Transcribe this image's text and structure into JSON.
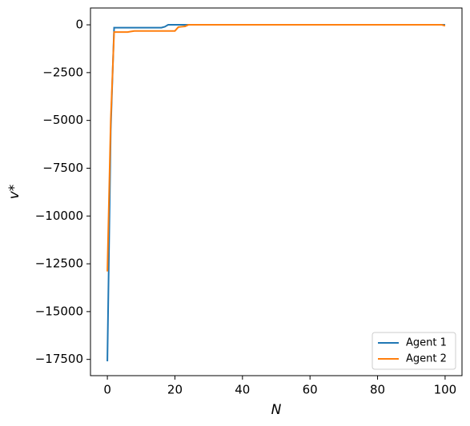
{
  "chart_data": {
    "type": "line",
    "xlabel": "N",
    "ylabel": "v*",
    "xlim": [
      -5,
      105
    ],
    "ylim": [
      -18350,
      880
    ],
    "xticks": [
      0,
      20,
      40,
      60,
      80,
      100
    ],
    "yticks": [
      0,
      {
        "value": -2500,
        "label": "−2500"
      },
      {
        "value": -5000,
        "label": "−5000"
      },
      {
        "value": -7500,
        "label": "−7500"
      },
      {
        "value": -10000,
        "label": "−10000"
      },
      {
        "value": -12500,
        "label": "−12500"
      },
      {
        "value": -15000,
        "label": "−15000"
      },
      {
        "value": -17500,
        "label": "−17500"
      }
    ],
    "legend": "lower right",
    "series": [
      {
        "name": "Agent 1",
        "color": "#1f77b4",
        "x": [
          0,
          1,
          2,
          16,
          17,
          18,
          24,
          100
        ],
        "values": [
          -17600,
          -5500,
          -150,
          -150,
          -100,
          0,
          0,
          0
        ]
      },
      {
        "name": "Agent 2",
        "color": "#ff7f0e",
        "x": [
          0,
          1,
          2,
          6,
          7,
          8,
          20,
          21,
          22,
          23,
          24,
          99,
          100
        ],
        "values": [
          -12900,
          -5000,
          -380,
          -380,
          -350,
          -320,
          -320,
          -120,
          -100,
          -80,
          0,
          0,
          -50
        ]
      }
    ]
  }
}
